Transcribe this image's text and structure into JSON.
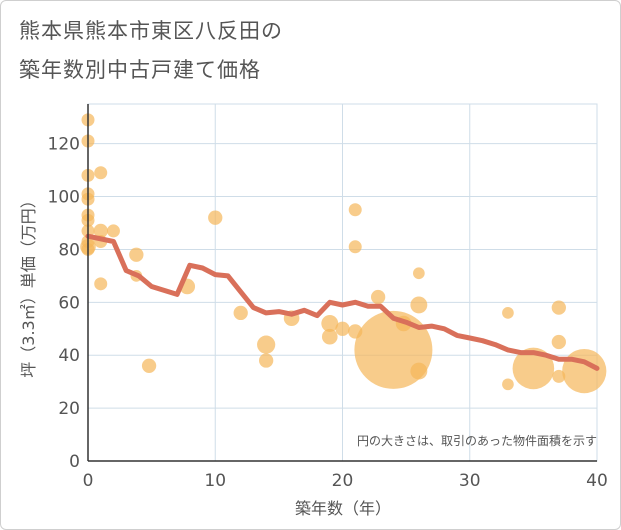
{
  "title_line1": "熊本県熊本市東区八反田の",
  "title_line2": "築年数別中古戸建て価格",
  "chart_data": {
    "type": "scatter+line",
    "xlabel": "築年数（年）",
    "ylabel": "坪（3.3㎡）単価（万円）",
    "xlim": [
      0,
      40
    ],
    "ylim": [
      0,
      135
    ],
    "xticks": [
      0,
      10,
      20,
      30,
      40
    ],
    "yticks": [
      0,
      20,
      40,
      60,
      80,
      100,
      120
    ],
    "note": "円の大きさは、取引のあった物件面積を示す",
    "colors": {
      "bubble": "#f5b75a",
      "line": "#d9705a",
      "grid": "#cfdde8",
      "axis": "#333333"
    },
    "bubbles": [
      {
        "x": 0,
        "y": 129,
        "s": 1
      },
      {
        "x": 0,
        "y": 121,
        "s": 1
      },
      {
        "x": 0,
        "y": 108,
        "s": 1
      },
      {
        "x": 0,
        "y": 101,
        "s": 1
      },
      {
        "x": 0,
        "y": 99,
        "s": 1
      },
      {
        "x": 0,
        "y": 93,
        "s": 1
      },
      {
        "x": 0,
        "y": 91,
        "s": 1
      },
      {
        "x": 0,
        "y": 87,
        "s": 1
      },
      {
        "x": 0,
        "y": 83,
        "s": 1
      },
      {
        "x": 0,
        "y": 81,
        "s": 1.2
      },
      {
        "x": 0,
        "y": 80,
        "s": 1
      },
      {
        "x": 1,
        "y": 109,
        "s": 1
      },
      {
        "x": 1,
        "y": 87,
        "s": 1.1
      },
      {
        "x": 1,
        "y": 83,
        "s": 1
      },
      {
        "x": 1,
        "y": 67,
        "s": 1
      },
      {
        "x": 2,
        "y": 87,
        "s": 1
      },
      {
        "x": 3.8,
        "y": 78,
        "s": 1.1
      },
      {
        "x": 3.8,
        "y": 70,
        "s": 0.9
      },
      {
        "x": 4.8,
        "y": 36,
        "s": 1.1
      },
      {
        "x": 7.8,
        "y": 66,
        "s": 1.2
      },
      {
        "x": 10,
        "y": 92,
        "s": 1.1
      },
      {
        "x": 12,
        "y": 56,
        "s": 1.1
      },
      {
        "x": 14,
        "y": 44,
        "s": 1.4
      },
      {
        "x": 14,
        "y": 38,
        "s": 1.1
      },
      {
        "x": 16,
        "y": 54,
        "s": 1.2
      },
      {
        "x": 19,
        "y": 52,
        "s": 1.3
      },
      {
        "x": 19,
        "y": 47,
        "s": 1.2
      },
      {
        "x": 20,
        "y": 50,
        "s": 1.1
      },
      {
        "x": 21,
        "y": 95,
        "s": 1
      },
      {
        "x": 21,
        "y": 81,
        "s": 1
      },
      {
        "x": 21,
        "y": 49,
        "s": 1.1
      },
      {
        "x": 22.8,
        "y": 62,
        "s": 1.1
      },
      {
        "x": 24,
        "y": 42,
        "s": 6.0
      },
      {
        "x": 24.8,
        "y": 52,
        "s": 1.2
      },
      {
        "x": 26,
        "y": 71,
        "s": 0.9
      },
      {
        "x": 26,
        "y": 59,
        "s": 1.3
      },
      {
        "x": 26,
        "y": 34,
        "s": 1.3
      },
      {
        "x": 33,
        "y": 56,
        "s": 0.9
      },
      {
        "x": 33,
        "y": 29,
        "s": 0.9
      },
      {
        "x": 35,
        "y": 35,
        "s": 3.2
      },
      {
        "x": 37,
        "y": 58,
        "s": 1.1
      },
      {
        "x": 37,
        "y": 45,
        "s": 1.1
      },
      {
        "x": 37,
        "y": 32,
        "s": 1
      },
      {
        "x": 39,
        "y": 34,
        "s": 3.4
      }
    ],
    "line": {
      "x": [
        0,
        2,
        3,
        4,
        5,
        7,
        8,
        9,
        10,
        11,
        12,
        13,
        14,
        15,
        16,
        17,
        18,
        19,
        20,
        21,
        22,
        23,
        24,
        25,
        26,
        27,
        28,
        29,
        30,
        31,
        32,
        33,
        34,
        35,
        36,
        37,
        38,
        39,
        40
      ],
      "y": [
        85,
        83,
        72,
        70,
        66,
        63,
        74,
        73,
        70.5,
        70,
        64,
        58,
        56,
        56.5,
        55.5,
        57,
        55,
        60,
        59,
        60,
        58.5,
        58.5,
        54,
        52.5,
        50.5,
        51,
        50,
        47.5,
        46.5,
        45.5,
        44,
        42,
        41,
        41,
        40,
        38.5,
        38.5,
        37.5,
        35
      ]
    }
  }
}
